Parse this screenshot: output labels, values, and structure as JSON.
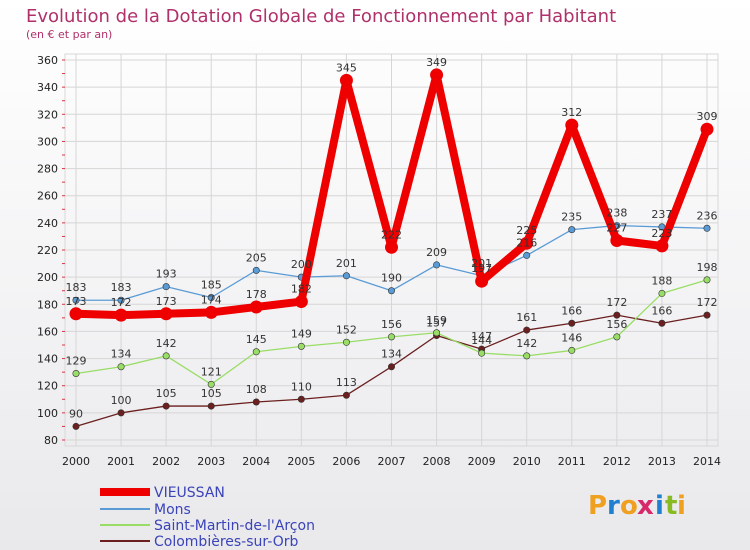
{
  "chart_data": {
    "type": "line",
    "title": "Evolution de la Dotation Globale de Fonctionnement par Habitant",
    "subtitle": "(en € et par an)",
    "x": [
      "2000",
      "2001",
      "2002",
      "2003",
      "2004",
      "2005",
      "2006",
      "2007",
      "2008",
      "2009",
      "2010",
      "2011",
      "2012",
      "2013",
      "2014"
    ],
    "ylim": [
      80,
      360
    ],
    "yticks": [
      80,
      100,
      120,
      140,
      160,
      180,
      200,
      220,
      240,
      260,
      280,
      300,
      320,
      340,
      360
    ],
    "grid": true,
    "legend_position": "bottom-left",
    "series": [
      {
        "name": "VIEUSSAN",
        "color": "#ee0000",
        "values": [
          173,
          172,
          173,
          174,
          178,
          182,
          345,
          222,
          349,
          197,
          225,
          312,
          227,
          223,
          309
        ]
      },
      {
        "name": "Mons",
        "color": "#5b9bd5",
        "values": [
          183,
          183,
          193,
          185,
          205,
          200,
          201,
          190,
          209,
          201,
          216,
          235,
          238,
          237,
          236
        ]
      },
      {
        "name": "Saint-Martin-de-l'Arçon",
        "color": "#99dd66",
        "values": [
          129,
          134,
          142,
          121,
          145,
          149,
          152,
          156,
          159,
          144,
          142,
          146,
          156,
          188,
          198
        ]
      },
      {
        "name": "Colombières-sur-Orb",
        "color": "#6b1f1f",
        "values": [
          90,
          100,
          105,
          105,
          108,
          110,
          113,
          134,
          157,
          147,
          161,
          166,
          172,
          166,
          172
        ]
      }
    ]
  },
  "brand": {
    "name": "Proxiti",
    "letters": [
      "P",
      "r",
      "o",
      "x",
      "i",
      "t",
      "i"
    ]
  }
}
